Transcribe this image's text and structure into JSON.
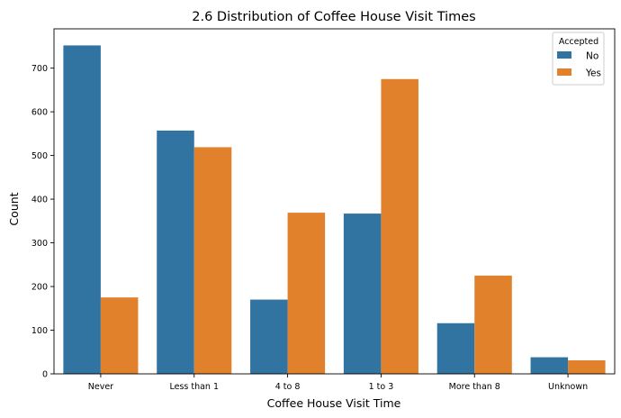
{
  "chart_data": {
    "type": "bar",
    "title": "2.6 Distribution of Coffee House Visit Times",
    "xlabel": "Coffee House Visit Time",
    "ylabel": "Count",
    "categories": [
      "Never",
      "Less than 1",
      "4 to 8",
      "1 to 3",
      "More than 8",
      "Unknown"
    ],
    "series": [
      {
        "name": "No",
        "values": [
          752,
          557,
          170,
          367,
          116,
          38
        ],
        "color": "#3274a1"
      },
      {
        "name": "Yes",
        "values": [
          175,
          519,
          369,
          675,
          225,
          31
        ],
        "color": "#e1812c"
      }
    ],
    "ylim": [
      0,
      790
    ],
    "yticks": [
      0,
      100,
      200,
      300,
      400,
      500,
      600,
      700
    ],
    "grid": false,
    "legend": {
      "title": "Accepted",
      "placement": "top-right"
    }
  }
}
